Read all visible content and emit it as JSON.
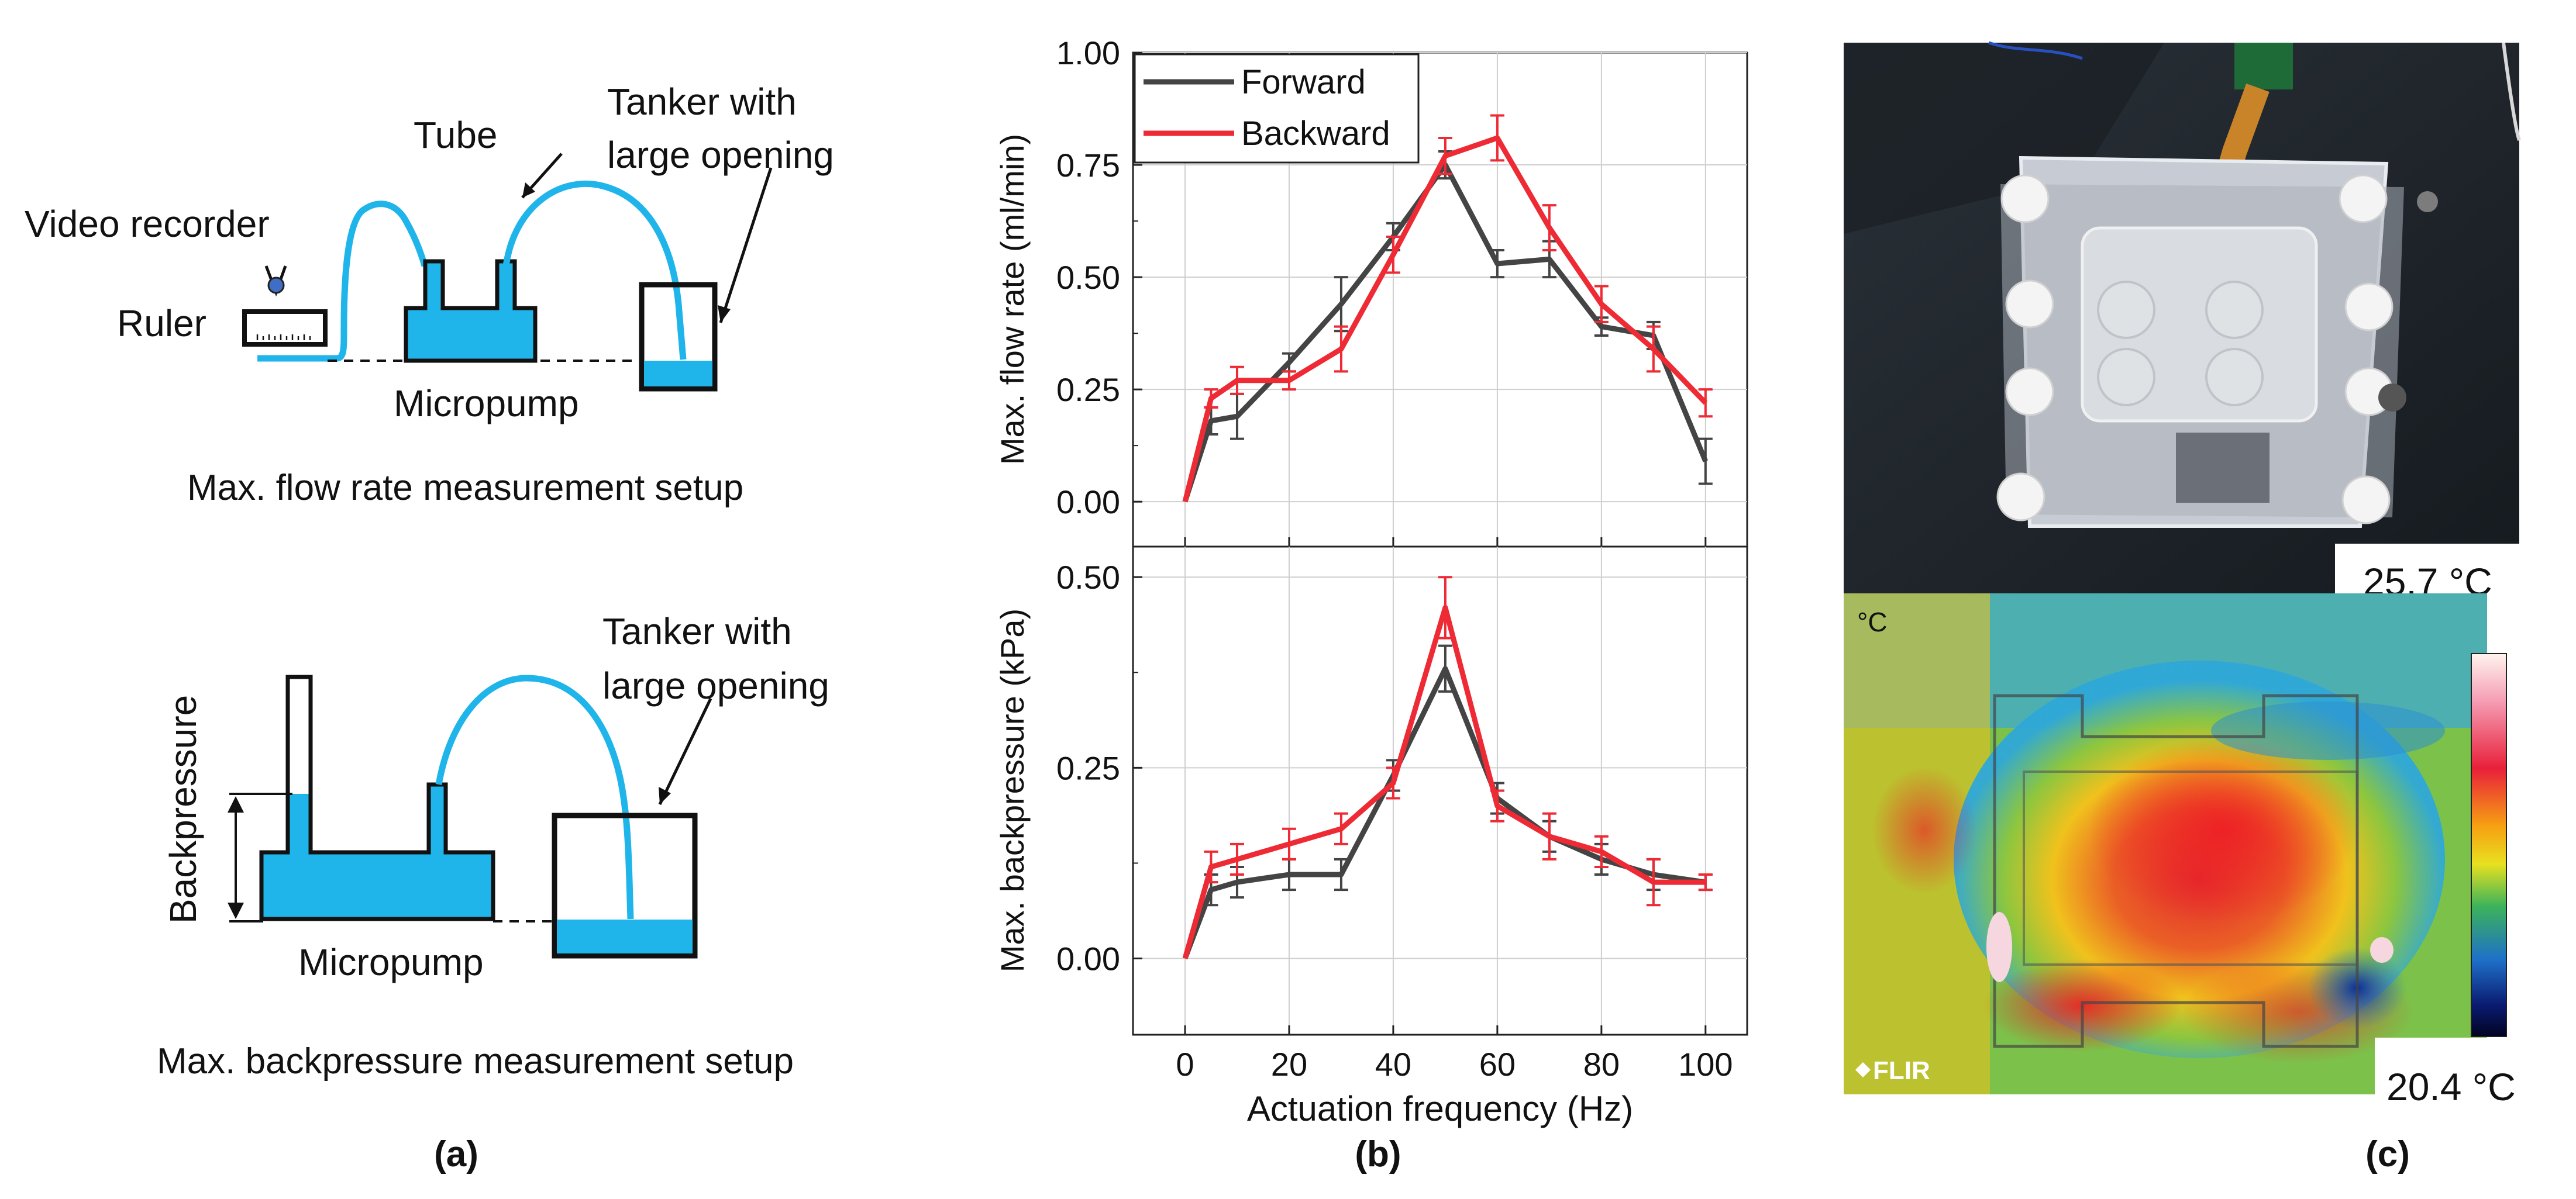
{
  "panel_a": {
    "top": {
      "video_recorder": "Video recorder",
      "ruler": "Ruler",
      "tube": "Tube",
      "tanker_line1": "Tanker with",
      "tanker_line2": "large opening",
      "micropump": "Micropump",
      "caption": "Max. flow rate measurement setup"
    },
    "bottom": {
      "backpressure": "Backpressure",
      "tanker_line1": "Tanker with",
      "tanker_line2": "large opening",
      "micropump": "Micropump",
      "caption": "Max. backpressure measurement setup"
    },
    "label": "(a)"
  },
  "panel_b": {
    "label": "(b)"
  },
  "panel_c": {
    "label": "(c)",
    "temp_max": "25.7 °C",
    "temp_min": "20.4 °C",
    "unit_icon_text": "°C",
    "brand": "FLIR"
  },
  "colors": {
    "forward": "#444444",
    "backward": "#ee2b35",
    "water": "#1fb5ea"
  },
  "chart_data": [
    {
      "type": "line",
      "title": "",
      "xlabel": "Actuation frequency (Hz)",
      "ylabel": "Max. flow rate (ml/min)",
      "xlim": [
        -10,
        108
      ],
      "ylim": [
        -0.1,
        1.0
      ],
      "xticks": [
        "0",
        "20",
        "40",
        "60",
        "80",
        "100"
      ],
      "yticks": [
        "0.00",
        "0.25",
        "0.50",
        "0.75",
        "1.00"
      ],
      "legend": [
        "Forward",
        "Backward"
      ],
      "legend_position": "top-left",
      "x": [
        0,
        5,
        10,
        20,
        30,
        40,
        50,
        60,
        70,
        80,
        90,
        100
      ],
      "series": [
        {
          "name": "Forward",
          "values": [
            0,
            0.18,
            0.19,
            0.31,
            0.44,
            0.59,
            0.75,
            0.53,
            0.54,
            0.39,
            0.37,
            0.09
          ],
          "errors": [
            0,
            0.03,
            0.05,
            0.02,
            0.06,
            0.03,
            0.03,
            0.03,
            0.04,
            0.02,
            0.03,
            0.05
          ]
        },
        {
          "name": "Backward",
          "values": [
            0,
            0.23,
            0.27,
            0.27,
            0.34,
            0.55,
            0.77,
            0.81,
            0.61,
            0.44,
            0.34,
            0.22
          ],
          "errors": [
            0,
            0.02,
            0.03,
            0.02,
            0.05,
            0.04,
            0.04,
            0.05,
            0.05,
            0.04,
            0.05,
            0.03
          ]
        }
      ]
    },
    {
      "type": "line",
      "title": "",
      "xlabel": "Actuation frequency (Hz)",
      "ylabel": "Max. backpressure (kPa)",
      "xlim": [
        -10,
        108
      ],
      "ylim": [
        -0.1,
        0.54
      ],
      "xticks": [
        "0",
        "20",
        "40",
        "60",
        "80",
        "100"
      ],
      "yticks": [
        "0.00",
        "0.25",
        "0.50"
      ],
      "x": [
        0,
        5,
        10,
        20,
        30,
        40,
        50,
        60,
        70,
        80,
        90,
        100
      ],
      "series": [
        {
          "name": "Forward",
          "values": [
            0,
            0.09,
            0.1,
            0.11,
            0.11,
            0.24,
            0.38,
            0.21,
            0.16,
            0.13,
            0.11,
            0.1
          ],
          "errors": [
            0,
            0.02,
            0.02,
            0.02,
            0.02,
            0.02,
            0.03,
            0.02,
            0.02,
            0.02,
            0.02,
            0.01
          ]
        },
        {
          "name": "Backward",
          "values": [
            0,
            0.12,
            0.13,
            0.15,
            0.17,
            0.23,
            0.46,
            0.2,
            0.16,
            0.14,
            0.1,
            0.1
          ],
          "errors": [
            0,
            0.02,
            0.02,
            0.02,
            0.02,
            0.02,
            0.04,
            0.02,
            0.03,
            0.02,
            0.03,
            0.01
          ]
        }
      ]
    }
  ]
}
